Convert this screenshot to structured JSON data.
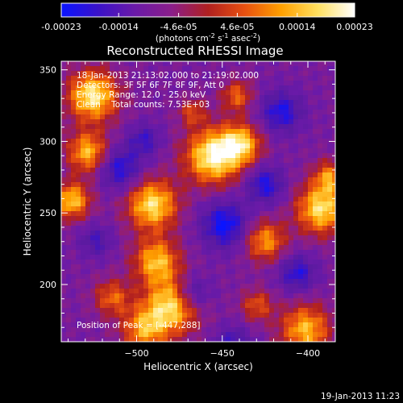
{
  "colorbar": {
    "tick_labels": [
      "-0.00023",
      "-0.00014",
      "-4.6e-05",
      "4.6e-05",
      "0.00014",
      "0.00023"
    ],
    "tick_values": [
      -0.00023,
      -0.00014,
      -4.6e-05,
      4.6e-05,
      0.00014,
      0.00023
    ],
    "range": [
      -0.00023,
      0.00023
    ],
    "units_main": "(photons cm",
    "units_sup1": "-2",
    "units_mid": " s",
    "units_sup2": "-1",
    "units_tail": " asec",
    "units_sup3": "-2",
    "units_close": ")",
    "colors": [
      "#0a14ff",
      "#3a12c8",
      "#6a1aa8",
      "#8a1e8a",
      "#b02020",
      "#e85010",
      "#ffa000",
      "#ffe060",
      "#ffffff"
    ]
  },
  "chart_data": {
    "type": "heatmap",
    "title": "Reconstructed RHESSI Image",
    "xlabel": "Heliocentric X (arcsec)",
    "ylabel": "Heliocentric Y (arcsec)",
    "xlim": [
      -544,
      -384
    ],
    "ylim": [
      160,
      356
    ],
    "x_ticks": [
      -500,
      -450,
      -400
    ],
    "x_tick_labels": [
      "−500",
      "−450",
      "−400"
    ],
    "y_ticks": [
      200,
      250,
      300,
      350
    ],
    "y_tick_labels": [
      "200",
      "250",
      "300",
      "350"
    ],
    "peak_position": [
      -447,
      288
    ],
    "annotations": [
      "18-Jan-2013 21:13:02.000 to 21:19:02.000",
      "Detectors: 3F 5F 6F 7F 8F 9F, Att 0",
      "Energy Range: 12.0 - 25.0 keV",
      "Clean    Total counts: 7.53E+03"
    ],
    "peak_label": "Position of Peak = [-447,288]"
  },
  "footer": {
    "timestamp": "19-Jan-2013 11:23"
  }
}
